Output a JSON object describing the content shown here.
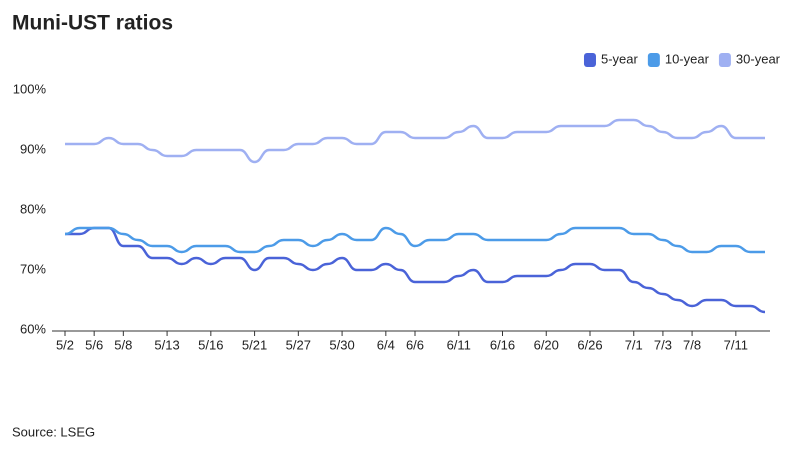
{
  "chart_data": {
    "type": "line",
    "title": "Muni-UST ratios",
    "source": "Source: LSEG",
    "categories": [
      "5/2",
      null,
      "5/6",
      null,
      "5/8",
      null,
      null,
      "5/13",
      null,
      null,
      "5/16",
      null,
      null,
      "5/21",
      null,
      null,
      "5/27",
      null,
      null,
      "5/30",
      null,
      null,
      "6/4",
      null,
      "6/6",
      null,
      null,
      "6/11",
      null,
      null,
      "6/16",
      null,
      null,
      "6/20",
      null,
      null,
      "6/26",
      null,
      null,
      "7/1",
      null,
      "7/3",
      null,
      "7/8",
      null,
      null,
      "7/11",
      null,
      null
    ],
    "series": [
      {
        "name": "5-year",
        "color": "#4a63d8",
        "values": [
          76,
          76,
          77,
          77,
          74,
          74,
          72,
          72,
          71,
          72,
          71,
          72,
          72,
          70,
          72,
          72,
          71,
          70,
          71,
          72,
          70,
          70,
          71,
          70,
          68,
          68,
          68,
          69,
          70,
          68,
          68,
          69,
          69,
          69,
          70,
          71,
          71,
          70,
          70,
          68,
          67,
          66,
          65,
          64,
          65,
          65,
          64,
          64,
          63
        ]
      },
      {
        "name": "10-year",
        "color": "#4c9be8",
        "values": [
          76,
          77,
          77,
          77,
          76,
          75,
          74,
          74,
          73,
          74,
          74,
          74,
          73,
          73,
          74,
          75,
          75,
          74,
          75,
          76,
          75,
          75,
          77,
          76,
          74,
          75,
          75,
          76,
          76,
          75,
          75,
          75,
          75,
          75,
          76,
          77,
          77,
          77,
          77,
          76,
          76,
          75,
          74,
          73,
          73,
          74,
          74,
          73,
          73
        ]
      },
      {
        "name": "30-year",
        "color": "#9fb0f2",
        "values": [
          91,
          91,
          91,
          92,
          91,
          91,
          90,
          89,
          89,
          90,
          90,
          90,
          90,
          88,
          90,
          90,
          91,
          91,
          92,
          92,
          91,
          91,
          93,
          93,
          92,
          92,
          92,
          93,
          94,
          92,
          92,
          93,
          93,
          93,
          94,
          94,
          94,
          94,
          95,
          95,
          94,
          93,
          92,
          92,
          93,
          94,
          92,
          92,
          92
        ]
      }
    ],
    "ylim": [
      60,
      100
    ],
    "yticks": [
      {
        "value": 60,
        "label": "60%"
      },
      {
        "value": 70,
        "label": "70%"
      },
      {
        "value": 80,
        "label": "80%"
      },
      {
        "value": 90,
        "label": "90%"
      },
      {
        "value": 100,
        "label": "100%"
      }
    ],
    "grid": false,
    "legend": "top-right"
  }
}
